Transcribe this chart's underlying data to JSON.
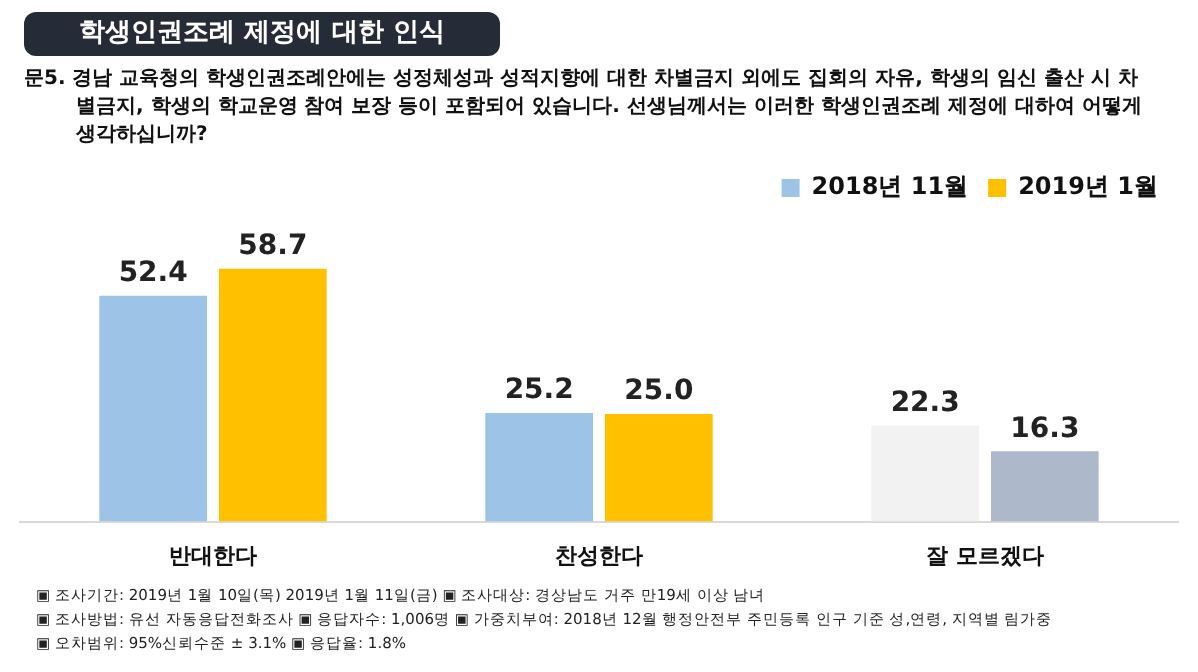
{
  "chart_data": {
    "type": "bar",
    "title": "학생인권조례 제정에 대한 인식",
    "subtitle": "문5. 경남 교육청의 학생인권조례안에는 성정체성과 성적지향에 대한 차별금지 외에도 집회의 자유, 학생의 임신 출산 시 차별금지, 학생의 학교운영 참여 보장 등이 포함되어 있습니다. 선생님께서는 이러한 학생인권조례 제정에 대하여 어떻게 생각하십니까?",
    "categories": [
      "반대한다",
      "찬성한다",
      "잘 모르겠다"
    ],
    "series": [
      {
        "name": "2018년 11월",
        "color": "#9dc3e6",
        "colors": [
          "#9dc3e6",
          "#9dc3e6",
          "#f2f2f2"
        ],
        "values": [
          52.4,
          25.2,
          22.3
        ],
        "value_labels": [
          "52.4",
          "25.2",
          "22.3"
        ]
      },
      {
        "name": "2019년 1월",
        "color": "#ffc000",
        "colors": [
          "#ffc000",
          "#ffc000",
          "#adb9ca"
        ],
        "values": [
          58.7,
          25.0,
          16.3
        ],
        "value_labels": [
          "58.7",
          "25.0",
          "16.3"
        ]
      }
    ],
    "legend": "top right",
    "grid": false,
    "annotations": [
      "▣ 조사기간: 2019년 1월 10일(목) 2019년 1월 11일(금) ▣ 조사대상: 경상남도 거주 만19세 이상 남녀",
      "▣ 조사방법: 유선 자동응답전화조사 ▣ 응답자수: 1,006명 ▣ 가중치부여: 2018년 12월 행정안전부 주민등록 인구 기준 성,연령, 지역별 림가중",
      "▣ 오차범위: 95%신뢰수준 ± 3.1% ▣ 응답율: 1.8%"
    ]
  }
}
